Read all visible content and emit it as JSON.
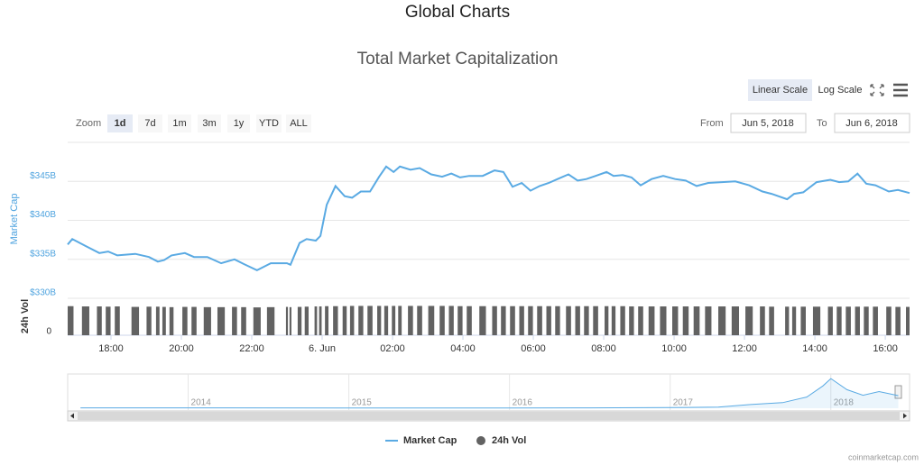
{
  "header": {
    "title": "Global Charts"
  },
  "chart_data": {
    "type": "line",
    "title": "Total Market Capitalization",
    "scale_buttons": [
      "Linear Scale",
      "Log Scale"
    ],
    "log_scale": false,
    "zoom_label": "Zoom",
    "zoom_buttons": [
      "1d",
      "7d",
      "1m",
      "3m",
      "1y",
      "YTD",
      "ALL"
    ],
    "zoom_selected": "1d",
    "from_label": "From",
    "from_value": "Jun 5, 2018",
    "to_label": "To",
    "to_value": "Jun 6, 2018",
    "ylabel": "Market Cap",
    "vol_label": "24h Vol",
    "x": [
      16.77,
      16.9,
      17.28,
      17.67,
      17.92,
      18.18,
      18.69,
      19.08,
      19.33,
      19.51,
      19.72,
      20.1,
      20.36,
      20.74,
      21.13,
      21.51,
      21.77,
      22.15,
      22.54,
      23.0,
      23.1,
      23.36,
      23.56,
      23.82,
      23.95,
      24.13,
      24.38,
      24.64,
      24.85,
      25.1,
      25.36,
      25.62,
      25.82,
      26.03,
      26.21,
      26.51,
      26.77,
      27.1,
      27.41,
      27.67,
      27.92,
      28.18,
      28.56,
      28.9,
      29.15,
      29.41,
      29.67,
      29.92,
      30.18,
      30.44,
      30.69,
      31.0,
      31.26,
      31.51,
      31.77,
      32.08,
      32.28,
      32.54,
      32.79,
      33.05,
      33.36,
      33.69,
      34.03,
      34.33,
      34.64,
      34.97,
      35.36,
      35.74,
      36.13,
      36.51,
      36.77,
      37.21,
      37.41,
      37.67,
      38.05,
      38.44,
      38.69,
      38.95,
      39.21,
      39.46,
      39.72,
      40.1,
      40.36,
      40.69
    ],
    "xlim": [
      16.77,
      40.69
    ],
    "xticks": [
      {
        "value": 18,
        "label": "18:00"
      },
      {
        "value": 20,
        "label": "20:00"
      },
      {
        "value": 22,
        "label": "22:00"
      },
      {
        "value": 24,
        "label": "6. Jun"
      },
      {
        "value": 26,
        "label": "02:00"
      },
      {
        "value": 28,
        "label": "04:00"
      },
      {
        "value": 30,
        "label": "06:00"
      },
      {
        "value": 32,
        "label": "08:00"
      },
      {
        "value": 34,
        "label": "10:00"
      },
      {
        "value": 36,
        "label": "12:00"
      },
      {
        "value": 38,
        "label": "14:00"
      },
      {
        "value": 40,
        "label": "16:00"
      }
    ],
    "ylim": [
      330,
      350
    ],
    "yticks": [
      {
        "value": 330,
        "label": "$330B"
      },
      {
        "value": 335,
        "label": "$335B"
      },
      {
        "value": 340,
        "label": "$340B"
      },
      {
        "value": 345,
        "label": "$345B"
      }
    ],
    "vol_ylim": [
      0,
      15
    ],
    "vol_yticks": [
      0
    ],
    "grid": true,
    "series": [
      {
        "name": "Market Cap",
        "color": "#5aaae3",
        "values": [
          336.9,
          337.6,
          336.7,
          335.8,
          336.0,
          335.5,
          335.7,
          335.3,
          334.7,
          334.9,
          335.5,
          335.8,
          335.3,
          335.3,
          334.5,
          335.0,
          334.4,
          333.6,
          334.5,
          334.5,
          334.3,
          337.1,
          337.6,
          337.4,
          338.0,
          342.0,
          344.4,
          343.1,
          342.9,
          343.7,
          343.7,
          345.6,
          346.9,
          346.2,
          346.9,
          346.5,
          346.7,
          345.9,
          345.6,
          346.0,
          345.5,
          345.7,
          345.7,
          346.4,
          346.2,
          344.3,
          344.8,
          343.8,
          344.4,
          344.8,
          345.3,
          345.9,
          345.1,
          345.3,
          345.7,
          346.2,
          345.7,
          345.8,
          345.5,
          344.5,
          345.3,
          345.7,
          345.3,
          345.1,
          344.4,
          344.8,
          344.9,
          345.0,
          344.5,
          343.7,
          343.4,
          342.7,
          343.4,
          343.6,
          344.9,
          345.2,
          344.9,
          345.0,
          346.0,
          344.7,
          344.5,
          343.7,
          343.9,
          343.5
        ]
      },
      {
        "name": "24h Vol",
        "color": "#626262",
        "axis": "vol",
        "values": [
          11.8,
          11.8,
          11.7,
          11.7,
          11.6,
          11.7,
          11.5,
          11.6,
          11.6,
          11.5,
          11.4,
          11.5,
          11.5,
          11.4,
          11.4,
          11.5,
          11.4,
          11.3,
          11.4,
          11.5,
          11.4,
          11.5,
          11.6,
          11.7,
          11.7,
          11.8,
          11.8,
          11.8,
          11.9,
          11.9,
          11.9,
          11.9,
          11.9,
          11.9,
          11.9,
          11.9,
          11.9,
          11.9,
          11.9,
          11.9,
          11.8,
          11.8,
          11.8,
          11.8,
          11.8,
          11.8,
          11.8,
          11.8,
          11.8,
          11.8,
          11.8,
          11.8,
          11.8,
          11.8,
          11.8,
          11.8,
          11.8,
          11.8,
          11.7,
          11.7,
          11.7,
          11.7,
          11.7,
          11.7,
          11.7,
          11.7,
          11.7,
          11.7,
          11.7,
          11.7,
          11.6,
          11.6,
          11.6,
          11.6,
          11.6,
          11.6,
          11.6,
          11.6,
          11.6,
          11.6,
          11.6,
          11.6,
          11.5,
          11.5
        ]
      }
    ],
    "navigator": {
      "x": [
        2013.33,
        2014.0,
        2015.0,
        2016.0,
        2016.5,
        2017.0,
        2017.3,
        2017.5,
        2017.7,
        2017.85,
        2017.95,
        2018.0,
        2018.1,
        2018.2,
        2018.3,
        2018.42
      ],
      "values": [
        10,
        10,
        5,
        7,
        10,
        18,
        30,
        100,
        150,
        300,
        600,
        800,
        500,
        350,
        450,
        340
      ],
      "xlim": [
        2013.25,
        2018.49
      ],
      "ylim": [
        0,
        850
      ],
      "xticks": [
        2014,
        2015,
        2016,
        2017,
        2018
      ]
    },
    "credit": "coinmarketcap.com"
  }
}
